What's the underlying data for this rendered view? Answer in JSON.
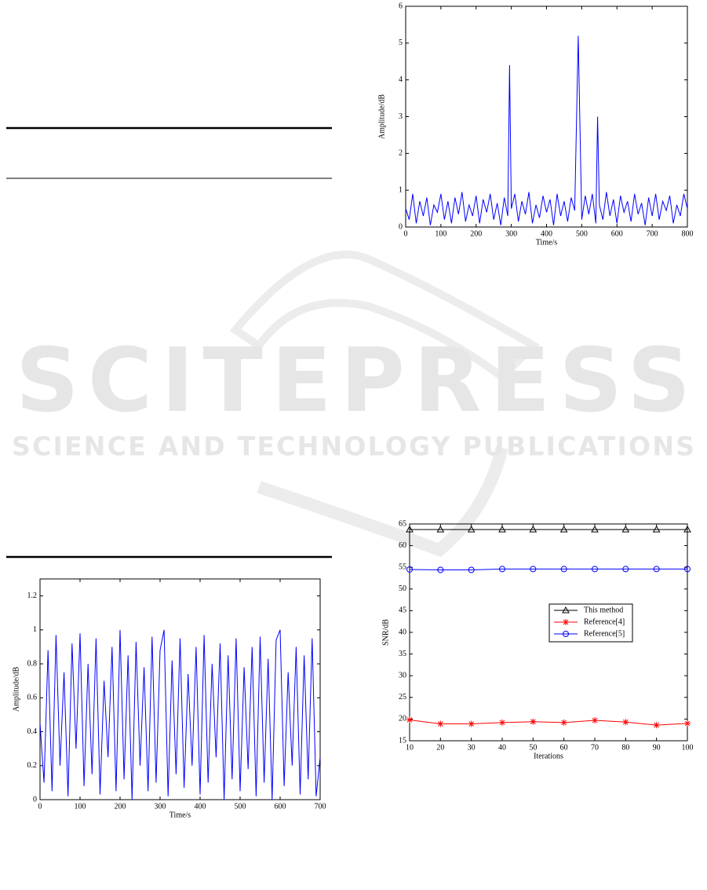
{
  "watermark": {
    "title": "SCITEPRESS",
    "subtitle": "SCIENCE AND TECHNOLOGY PUBLICATIONS"
  },
  "chart_data": [
    {
      "type": "line",
      "xlabel": "Time/s",
      "ylabel": "Amplitude/dB",
      "xlim": [
        0,
        800
      ],
      "ylim": [
        0,
        6
      ],
      "xticks": [
        0,
        100,
        200,
        300,
        400,
        500,
        600,
        700,
        800
      ],
      "yticks": [
        0,
        1,
        2,
        3,
        4,
        5,
        6
      ],
      "x": [
        0,
        10,
        20,
        30,
        40,
        50,
        60,
        70,
        80,
        90,
        100,
        110,
        120,
        130,
        140,
        150,
        160,
        170,
        180,
        190,
        200,
        210,
        220,
        230,
        240,
        250,
        260,
        270,
        280,
        290,
        295,
        300,
        310,
        320,
        330,
        340,
        350,
        360,
        370,
        380,
        390,
        400,
        410,
        420,
        430,
        440,
        450,
        460,
        470,
        480,
        490,
        500,
        510,
        520,
        530,
        540,
        545,
        550,
        560,
        570,
        580,
        590,
        600,
        610,
        620,
        630,
        640,
        650,
        660,
        670,
        680,
        690,
        700,
        710,
        720,
        730,
        740,
        750,
        760,
        770,
        780,
        790,
        800
      ],
      "series": [
        {
          "color": "#0000ff",
          "values": [
            0.5,
            0.2,
            0.9,
            0.1,
            0.7,
            0.3,
            0.8,
            0.05,
            0.6,
            0.4,
            0.9,
            0.2,
            0.7,
            0.1,
            0.8,
            0.35,
            0.95,
            0.15,
            0.6,
            0.3,
            0.85,
            0.1,
            0.75,
            0.4,
            0.9,
            0.2,
            0.65,
            0.05,
            0.8,
            0.3,
            4.4,
            0.5,
            0.9,
            0.15,
            0.7,
            0.35,
            0.95,
            0.1,
            0.6,
            0.25,
            0.85,
            0.4,
            0.75,
            0.05,
            0.9,
            0.3,
            0.7,
            0.15,
            0.8,
            0.45,
            5.2,
            0.2,
            0.85,
            0.35,
            0.9,
            0.1,
            3.0,
            0.6,
            0.2,
            0.95,
            0.3,
            0.75,
            0.1,
            0.85,
            0.4,
            0.7,
            0.15,
            0.9,
            0.35,
            0.65,
            0.05,
            0.8,
            0.3,
            0.9,
            0.2,
            0.7,
            0.45,
            0.85,
            0.1,
            0.6,
            0.3,
            0.9,
            0.5
          ]
        }
      ]
    },
    {
      "type": "line",
      "xlabel": "Time/s",
      "ylabel": "Amplitude/dB",
      "xlim": [
        0,
        700
      ],
      "ylim": [
        0,
        1.3
      ],
      "xticks": [
        0,
        100,
        200,
        300,
        400,
        500,
        600,
        700
      ],
      "yticks": [
        0,
        0.2,
        0.4,
        0.6,
        0.8,
        1,
        1.2
      ],
      "x": [
        0,
        10,
        20,
        30,
        40,
        50,
        60,
        70,
        80,
        90,
        100,
        110,
        120,
        130,
        140,
        150,
        160,
        170,
        180,
        190,
        200,
        210,
        220,
        230,
        240,
        250,
        260,
        270,
        280,
        290,
        300,
        310,
        320,
        330,
        340,
        350,
        360,
        370,
        380,
        390,
        400,
        410,
        420,
        430,
        440,
        450,
        460,
        470,
        480,
        490,
        500,
        510,
        520,
        530,
        540,
        550,
        560,
        570,
        580,
        590,
        600,
        610,
        620,
        630,
        640,
        650,
        660,
        670,
        680,
        690,
        700
      ],
      "series": [
        {
          "color": "#0000ff",
          "values": [
            0.45,
            0.1,
            0.88,
            0.05,
            0.97,
            0.2,
            0.75,
            0.02,
            0.92,
            0.3,
            0.98,
            0.08,
            0.8,
            0.15,
            0.95,
            0.03,
            0.7,
            0.25,
            0.9,
            0.05,
            1.0,
            0.12,
            0.85,
            0.0,
            0.93,
            0.2,
            0.78,
            0.05,
            0.96,
            0.1,
            0.88,
            1.0,
            0.02,
            0.82,
            0.15,
            0.95,
            0.07,
            0.74,
            0.2,
            0.9,
            0.03,
            0.97,
            0.1,
            0.8,
            0.25,
            0.92,
            0.0,
            0.85,
            0.12,
            0.95,
            0.05,
            0.78,
            0.18,
            0.9,
            0.02,
            0.96,
            0.1,
            0.83,
            0.0,
            0.94,
            1.0,
            0.08,
            0.75,
            0.2,
            0.9,
            0.03,
            0.85,
            0.12,
            0.95,
            0.02,
            0.25
          ]
        }
      ]
    },
    {
      "type": "line",
      "xlabel": "Iterations",
      "ylabel": "SNR/dB",
      "xlim": [
        10,
        100
      ],
      "ylim": [
        15,
        65
      ],
      "xticks": [
        10,
        20,
        30,
        40,
        50,
        60,
        70,
        80,
        90,
        100
      ],
      "yticks": [
        15,
        20,
        25,
        30,
        35,
        40,
        45,
        50,
        55,
        60,
        65
      ],
      "legend": "center right",
      "x": [
        10,
        20,
        30,
        40,
        50,
        60,
        70,
        80,
        90,
        100
      ],
      "series": [
        {
          "name": "This method",
          "color": "#000000",
          "marker": "triangle",
          "values": [
            63.7,
            63.7,
            63.7,
            63.7,
            63.7,
            63.7,
            63.7,
            63.7,
            63.7,
            63.7
          ]
        },
        {
          "name": "Reference[4]",
          "color": "#ff0000",
          "marker": "star",
          "values": [
            19.8,
            18.9,
            18.9,
            19.2,
            19.4,
            19.2,
            19.7,
            19.3,
            18.6,
            19.0
          ]
        },
        {
          "name": "Reference[5]",
          "color": "#0000ff",
          "marker": "circle",
          "values": [
            54.5,
            54.4,
            54.4,
            54.6,
            54.6,
            54.6,
            54.6,
            54.6,
            54.6,
            54.6
          ]
        }
      ]
    }
  ]
}
